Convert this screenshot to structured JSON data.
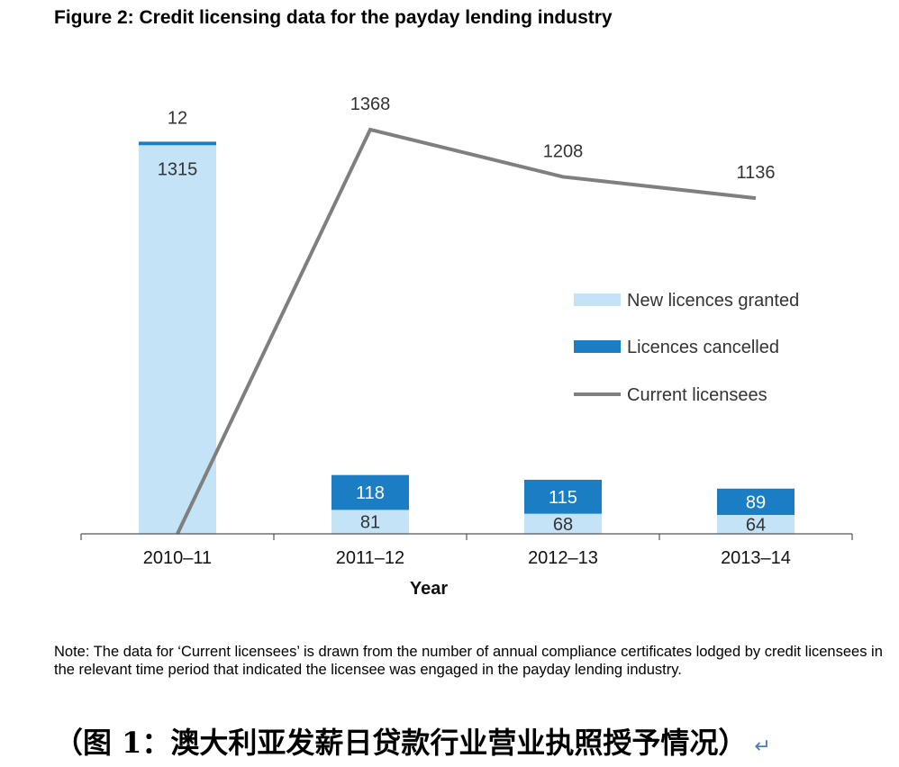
{
  "figure_title": "Figure 2:   Credit licensing data for the payday lending industry",
  "note": "Note: The data for ‘Current licensees’ is drawn from the number of annual compliance certificates lodged by credit licensees in the relevant time period that indicated the licensee was engaged in the payday lending industry.",
  "caption": "（图 1：澳大利亚发薪日贷款行业营业执照授予情况）",
  "caption_return_mark": "↵",
  "chart_data": {
    "type": "bar",
    "stacked": true,
    "title": "Credit licensing data for the payday lending industry",
    "xlabel": "Year",
    "ylabel": "",
    "categories": [
      "2010–11",
      "2011–12",
      "2012–13",
      "2013–14"
    ],
    "series": [
      {
        "name": "New licences granted",
        "kind": "bar",
        "values": [
          1315,
          81,
          68,
          64
        ],
        "color": "#c5e3f7"
      },
      {
        "name": "Licences cancelled",
        "kind": "bar",
        "values": [
          12,
          118,
          115,
          89
        ],
        "color": "#1b7ec4"
      },
      {
        "name": "Current licensees",
        "kind": "line",
        "values": [
          0,
          1368,
          1208,
          1136
        ],
        "labels": [
          "",
          "1368",
          "1208",
          "1136"
        ],
        "color": "#7f7f7f"
      }
    ],
    "ylim": [
      0,
      1450
    ],
    "grid": false,
    "legend_position": "right"
  }
}
